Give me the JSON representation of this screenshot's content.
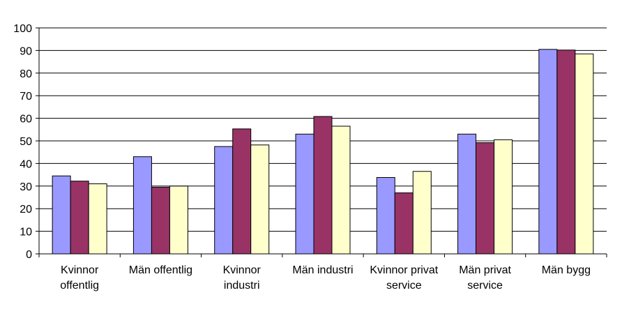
{
  "chart_data": {
    "type": "bar",
    "title": "",
    "xlabel": "",
    "ylabel": "",
    "ylim": [
      0,
      100
    ],
    "yticks": [
      0,
      10,
      20,
      30,
      40,
      50,
      60,
      70,
      80,
      90,
      100
    ],
    "grid": "horizontal",
    "legend": "none",
    "categories": [
      [
        "Kvinnor",
        "offentlig"
      ],
      [
        "Män offentlig"
      ],
      [
        "Kvinnor",
        "industri"
      ],
      [
        "Män industri"
      ],
      [
        "Kvinnor privat",
        "service"
      ],
      [
        "Män privat",
        "service"
      ],
      [
        "Män bygg"
      ]
    ],
    "series": [
      {
        "color": "#9999ff",
        "values": [
          34.5,
          43,
          47.5,
          53,
          33.8,
          53,
          90.5
        ]
      },
      {
        "color": "#993366",
        "values": [
          32.2,
          29.5,
          55.3,
          60.8,
          27,
          49.2,
          90.2
        ]
      },
      {
        "color": "#ffffcc",
        "values": [
          31,
          30,
          48.2,
          56.5,
          36.5,
          50.5,
          88.5
        ]
      }
    ]
  }
}
